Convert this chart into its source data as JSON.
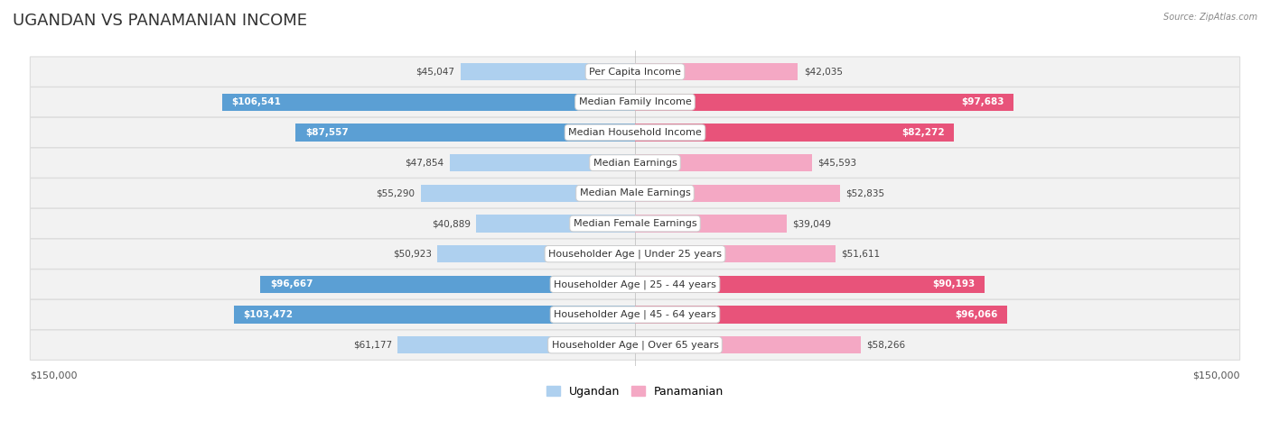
{
  "title": "UGANDAN VS PANAMANIAN INCOME",
  "source": "Source: ZipAtlas.com",
  "categories": [
    "Per Capita Income",
    "Median Family Income",
    "Median Household Income",
    "Median Earnings",
    "Median Male Earnings",
    "Median Female Earnings",
    "Householder Age | Under 25 years",
    "Householder Age | 25 - 44 years",
    "Householder Age | 45 - 64 years",
    "Householder Age | Over 65 years"
  ],
  "ugandan": [
    45047,
    106541,
    87557,
    47854,
    55290,
    40889,
    50923,
    96667,
    103472,
    61177
  ],
  "panamanian": [
    42035,
    97683,
    82272,
    45593,
    52835,
    39049,
    51611,
    90193,
    96066,
    58266
  ],
  "max_val": 150000,
  "ugandan_light": "#aed0ef",
  "ugandan_dark": "#5b9fd4",
  "panamanian_light": "#f4a8c4",
  "panamanian_dark": "#e8537a",
  "row_bg": "#f2f2f2",
  "row_edge": "#dddddd",
  "bar_height": 0.58,
  "threshold": 70000,
  "title_fontsize": 13,
  "label_fontsize": 8,
  "value_fontsize": 7.5,
  "legend_fontsize": 9,
  "axis_label_fontsize": 8,
  "ugandan_label": "Ugandan",
  "panamanian_label": "Panamanian"
}
